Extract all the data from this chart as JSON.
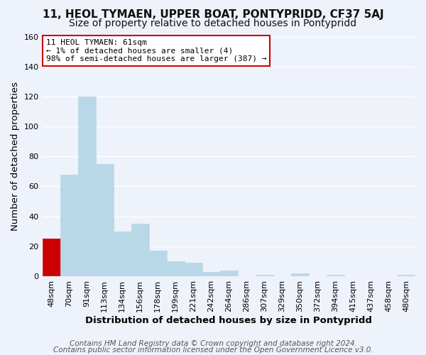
{
  "title1": "11, HEOL TYMAEN, UPPER BOAT, PONTYPRIDD, CF37 5AJ",
  "title2": "Size of property relative to detached houses in Pontypridd",
  "xlabel": "Distribution of detached houses by size in Pontypridd",
  "ylabel": "Number of detached properties",
  "bin_labels": [
    "48sqm",
    "70sqm",
    "91sqm",
    "113sqm",
    "134sqm",
    "156sqm",
    "178sqm",
    "199sqm",
    "221sqm",
    "242sqm",
    "264sqm",
    "286sqm",
    "307sqm",
    "329sqm",
    "350sqm",
    "372sqm",
    "394sqm",
    "415sqm",
    "437sqm",
    "458sqm",
    "480sqm"
  ],
  "bar_values": [
    25,
    68,
    120,
    75,
    30,
    35,
    17,
    10,
    9,
    3,
    4,
    0,
    1,
    0,
    2,
    0,
    1,
    0,
    0,
    0,
    1
  ],
  "bar_color": "#b8d8e8",
  "highlight_bar_index": 0,
  "highlight_color": "#cc0000",
  "annotation_title": "11 HEOL TYMAEN: 61sqm",
  "annotation_line1": "← 1% of detached houses are smaller (4)",
  "annotation_line2": "98% of semi-detached houses are larger (387) →",
  "annotation_box_color": "#ffffff",
  "annotation_box_edge": "#cc0000",
  "footer1": "Contains HM Land Registry data © Crown copyright and database right 2024.",
  "footer2": "Contains public sector information licensed under the Open Government Licence v3.0.",
  "ylim": [
    0,
    160
  ],
  "yticks": [
    0,
    20,
    40,
    60,
    80,
    100,
    120,
    140,
    160
  ],
  "background_color": "#eef2fb",
  "plot_bg_color": "#eef2fb",
  "grid_color": "#ffffff",
  "title_fontsize": 11,
  "subtitle_fontsize": 10,
  "axis_label_fontsize": 9.5,
  "tick_fontsize": 8,
  "footer_fontsize": 7.5
}
